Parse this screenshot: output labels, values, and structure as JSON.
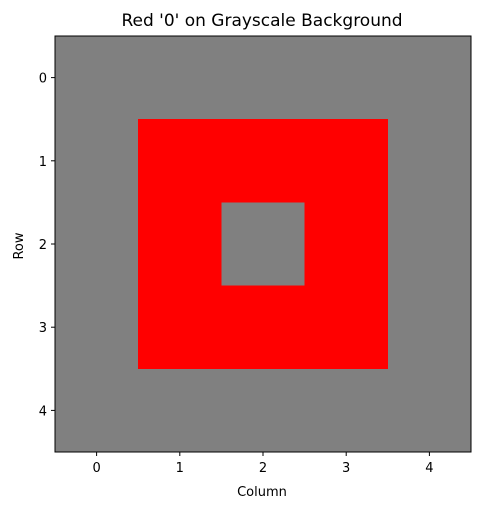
{
  "chart_data": {
    "type": "heatmap",
    "title": "Red '0' on Grayscale Background",
    "xlabel": "Column",
    "ylabel": "Row",
    "x_ticks": [
      "0",
      "1",
      "2",
      "3",
      "4"
    ],
    "y_ticks": [
      "0",
      "1",
      "2",
      "3",
      "4"
    ],
    "xlim": [
      -0.5,
      4.5
    ],
    "ylim": [
      4.5,
      -0.5
    ],
    "grid": false,
    "colors": {
      "background": "#808080",
      "red": "#ff0000"
    },
    "matrix": [
      [
        "background",
        "background",
        "background",
        "background",
        "background"
      ],
      [
        "background",
        "red",
        "red",
        "red",
        "background"
      ],
      [
        "background",
        "red",
        "background",
        "red",
        "background"
      ],
      [
        "background",
        "red",
        "red",
        "red",
        "background"
      ],
      [
        "background",
        "background",
        "background",
        "background",
        "background"
      ]
    ]
  }
}
